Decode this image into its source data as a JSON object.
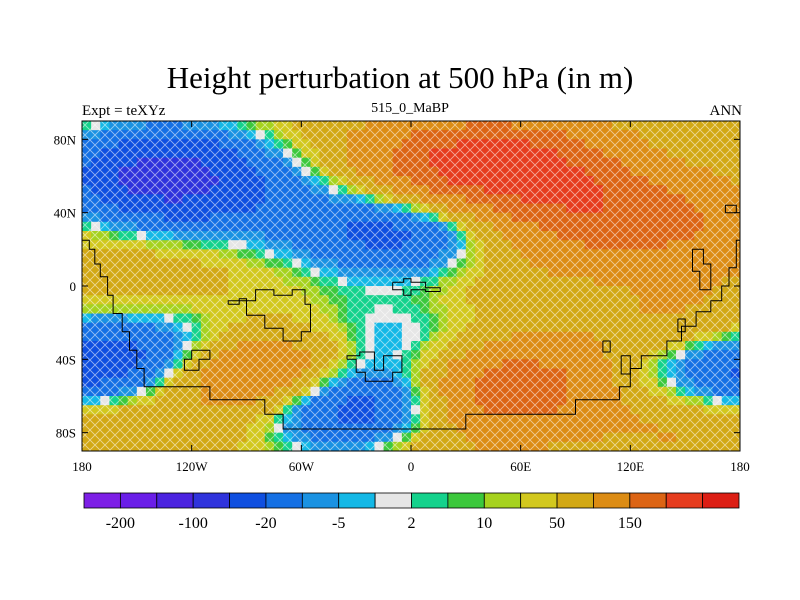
{
  "title": "Height perturbation at 500 hPa (in m)",
  "left_label": "Expt = teXYz",
  "center_label": "515_0_MaBP",
  "right_label": "ANN",
  "y_axis": {
    "ticks": [
      {
        "lat": 80,
        "label": "80N"
      },
      {
        "lat": 40,
        "label": "40N"
      },
      {
        "lat": 0,
        "label": "0"
      },
      {
        "lat": -40,
        "label": "40S"
      },
      {
        "lat": -80,
        "label": "80S"
      }
    ]
  },
  "x_axis": {
    "ticks": [
      {
        "lon": -180,
        "label": "180"
      },
      {
        "lon": -120,
        "label": "120W"
      },
      {
        "lon": -60,
        "label": "60W"
      },
      {
        "lon": 0,
        "label": "0"
      },
      {
        "lon": 60,
        "label": "60E"
      },
      {
        "lon": 120,
        "label": "120E"
      },
      {
        "lon": 180,
        "label": "180"
      }
    ]
  },
  "colorbar": {
    "colors": [
      "#7d1fe6",
      "#6a1ee8",
      "#4b23e0",
      "#2f33dc",
      "#0f4fe0",
      "#1570e4",
      "#1a92e2",
      "#14b8e6",
      "#e6e6e6",
      "#14d28c",
      "#3cc83c",
      "#a6d21e",
      "#d2c81e",
      "#d2a814",
      "#dc8c14",
      "#dc6414",
      "#e63c1e",
      "#dc1e14"
    ],
    "labels": [
      {
        "boundary": 1,
        "text": "-200"
      },
      {
        "boundary": 3,
        "text": "-100"
      },
      {
        "boundary": 5,
        "text": "-20"
      },
      {
        "boundary": 7,
        "text": "-5"
      },
      {
        "boundary": 9,
        "text": "2"
      },
      {
        "boundary": 11,
        "text": "10"
      },
      {
        "boundary": 13,
        "text": "50"
      },
      {
        "boundary": 15,
        "text": "150"
      }
    ]
  },
  "field_features": [
    {
      "lon": -135,
      "lat": 60,
      "value": -150
    },
    {
      "lon": -50,
      "lat": 55,
      "value": -20
    },
    {
      "lon": 10,
      "lat": 65,
      "value": 90
    },
    {
      "lon": 60,
      "lat": 65,
      "value": 120
    },
    {
      "lon": 110,
      "lat": 40,
      "value": 80
    },
    {
      "lon": -5,
      "lat": 30,
      "value": -90
    },
    {
      "lon": -80,
      "lat": 35,
      "value": -20
    },
    {
      "lon": 160,
      "lat": 30,
      "value": 40
    },
    {
      "lon": 70,
      "lat": 25,
      "value": 20
    },
    {
      "lon": -140,
      "lat": -5,
      "value": 20
    },
    {
      "lon": 40,
      "lat": -5,
      "value": 10
    },
    {
      "lon": -115,
      "lat": -30,
      "value": -60
    },
    {
      "lon": -35,
      "lat": -25,
      "value": -20
    },
    {
      "lon": 10,
      "lat": -30,
      "value": -30
    },
    {
      "lon": 130,
      "lat": -20,
      "value": -10
    },
    {
      "lon": 150,
      "lat": -25,
      "value": 60
    },
    {
      "lon": -175,
      "lat": -45,
      "value": -110
    },
    {
      "lon": 175,
      "lat": -45,
      "value": -110
    },
    {
      "lon": -85,
      "lat": -45,
      "value": 120
    },
    {
      "lon": 55,
      "lat": -55,
      "value": 120
    },
    {
      "lon": -30,
      "lat": -67,
      "value": -120
    },
    {
      "lon": 120,
      "lat": -60,
      "value": -20
    },
    {
      "lon": -170,
      "lat": -70,
      "value": 40
    },
    {
      "lon": 150,
      "lat": -70,
      "value": 50
    },
    {
      "lon": 0,
      "lat": -85,
      "value": 30
    }
  ],
  "coastlines": [
    [
      [
        -180,
        25
      ],
      [
        -176,
        25
      ],
      [
        -176,
        20
      ],
      [
        -173,
        20
      ],
      [
        -173,
        12
      ],
      [
        -170,
        12
      ],
      [
        -170,
        5
      ],
      [
        -166,
        5
      ],
      [
        -166,
        -5
      ],
      [
        -163,
        -5
      ],
      [
        -163,
        -15
      ],
      [
        -158,
        -15
      ],
      [
        -158,
        -25
      ],
      [
        -154,
        -25
      ],
      [
        -154,
        -35
      ],
      [
        -150,
        -35
      ],
      [
        -150,
        -45
      ],
      [
        -146,
        -45
      ],
      [
        -146,
        -55
      ],
      [
        -110,
        -55
      ],
      [
        -110,
        -62
      ],
      [
        -80,
        -62
      ],
      [
        -80,
        -70
      ],
      [
        -70,
        -70
      ],
      [
        -70,
        -78
      ],
      [
        30,
        -78
      ],
      [
        30,
        -70
      ],
      [
        90,
        -70
      ],
      [
        90,
        -62
      ],
      [
        114,
        -62
      ],
      [
        114,
        -55
      ],
      [
        120,
        -55
      ],
      [
        120,
        -45
      ],
      [
        126,
        -45
      ],
      [
        126,
        -38
      ],
      [
        140,
        -38
      ],
      [
        140,
        -30
      ],
      [
        148,
        -30
      ],
      [
        148,
        -22
      ],
      [
        156,
        -22
      ],
      [
        156,
        -14
      ],
      [
        164,
        -14
      ],
      [
        164,
        -8
      ],
      [
        170,
        -8
      ],
      [
        170,
        0
      ],
      [
        174,
        0
      ],
      [
        174,
        10
      ],
      [
        178,
        10
      ],
      [
        178,
        25
      ],
      [
        180,
        25
      ]
    ],
    [
      [
        -100,
        -10
      ],
      [
        -94,
        -10
      ],
      [
        -94,
        -7
      ],
      [
        -90,
        -7
      ],
      [
        -90,
        -16
      ],
      [
        -80,
        -16
      ],
      [
        -80,
        -23
      ],
      [
        -70,
        -23
      ],
      [
        -70,
        -30
      ],
      [
        -60,
        -30
      ],
      [
        -60,
        -25
      ],
      [
        -55,
        -25
      ],
      [
        -55,
        -10
      ],
      [
        -58,
        -10
      ],
      [
        -58,
        -2
      ],
      [
        -65,
        -2
      ],
      [
        -65,
        -5
      ],
      [
        -75,
        -5
      ],
      [
        -75,
        -2
      ],
      [
        -85,
        -2
      ],
      [
        -85,
        -8
      ],
      [
        -100,
        -8
      ],
      [
        -100,
        -10
      ]
    ],
    [
      [
        -10,
        2
      ],
      [
        -10,
        -2
      ],
      [
        -4,
        -2
      ],
      [
        -4,
        -5
      ],
      [
        0,
        -5
      ],
      [
        0,
        -2
      ],
      [
        8,
        -2
      ],
      [
        8,
        -3
      ],
      [
        16,
        -3
      ],
      [
        16,
        -1
      ],
      [
        8,
        -1
      ],
      [
        8,
        2
      ],
      [
        0,
        2
      ],
      [
        0,
        4
      ],
      [
        -4,
        4
      ],
      [
        -4,
        2
      ],
      [
        -10,
        2
      ]
    ],
    [
      [
        -35,
        -40
      ],
      [
        -30,
        -40
      ],
      [
        -30,
        -47
      ],
      [
        -25,
        -47
      ],
      [
        -25,
        -52
      ],
      [
        -10,
        -52
      ],
      [
        -10,
        -47
      ],
      [
        -5,
        -47
      ],
      [
        -5,
        -38
      ],
      [
        -15,
        -38
      ],
      [
        -15,
        -46
      ],
      [
        -20,
        -46
      ],
      [
        -20,
        -36
      ],
      [
        -28,
        -36
      ],
      [
        -28,
        -38
      ],
      [
        -35,
        -38
      ],
      [
        -35,
        -40
      ]
    ],
    [
      [
        -120,
        -35
      ],
      [
        -110,
        -35
      ],
      [
        -110,
        -40
      ],
      [
        -116,
        -40
      ],
      [
        -116,
        -46
      ],
      [
        -124,
        -46
      ],
      [
        -124,
        -40
      ],
      [
        -120,
        -40
      ],
      [
        -120,
        -35
      ]
    ],
    [
      [
        115,
        -38
      ],
      [
        120,
        -38
      ],
      [
        120,
        -48
      ],
      [
        115,
        -48
      ],
      [
        115,
        -38
      ]
    ],
    [
      [
        105,
        -30
      ],
      [
        109,
        -30
      ],
      [
        109,
        -36
      ],
      [
        105,
        -36
      ],
      [
        105,
        -30
      ]
    ],
    [
      [
        146,
        -18
      ],
      [
        150,
        -18
      ],
      [
        150,
        -25
      ],
      [
        146,
        -25
      ],
      [
        146,
        -18
      ]
    ],
    [
      [
        154,
        20
      ],
      [
        160,
        20
      ],
      [
        160,
        12
      ],
      [
        164,
        12
      ],
      [
        164,
        -2
      ],
      [
        158,
        -2
      ],
      [
        158,
        8
      ],
      [
        154,
        8
      ],
      [
        154,
        20
      ]
    ],
    [
      [
        172,
        40
      ],
      [
        178,
        40
      ],
      [
        178,
        44
      ],
      [
        172,
        44
      ],
      [
        172,
        40
      ]
    ]
  ]
}
